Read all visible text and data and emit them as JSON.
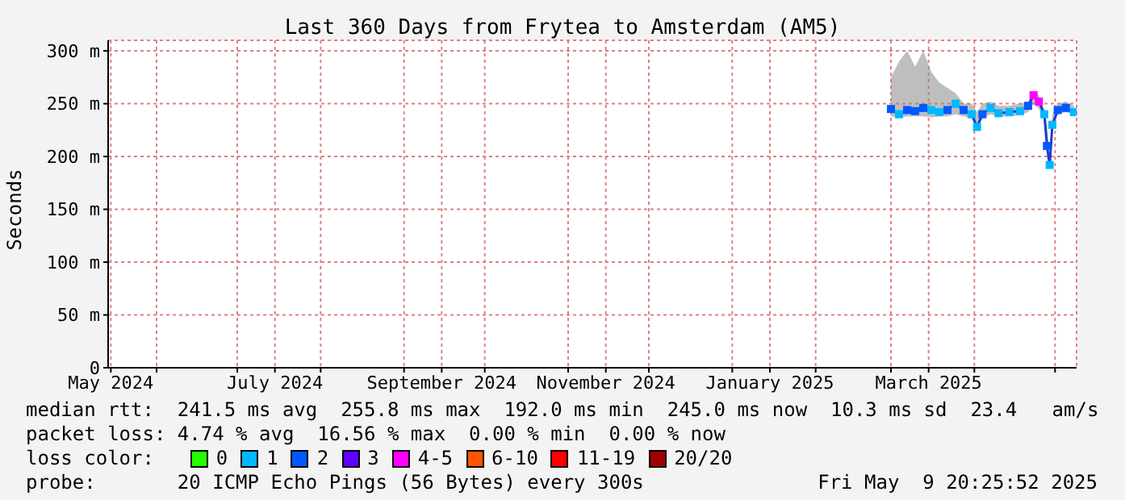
{
  "chart_data": {
    "type": "line",
    "title": "Last 360 Days from Frytea to Amsterdam (AM5)",
    "ylabel": "Seconds",
    "legend_title": "loss color:",
    "legend": "bottom",
    "grid": true,
    "line_style": "solid",
    "marker": "square",
    "xlim": [
      "2024-05-14",
      "2025-05-09"
    ],
    "xticks": [
      {
        "value": "2024-05-15",
        "label": "May 2024"
      },
      {
        "value": "2024-06-01",
        "label": null
      },
      {
        "value": "2024-07-01",
        "label": null
      },
      {
        "value": "2024-07-15",
        "label": "July 2024"
      },
      {
        "value": "2024-08-01",
        "label": null
      },
      {
        "value": "2024-09-01",
        "label": null
      },
      {
        "value": "2024-09-15",
        "label": "September 2024"
      },
      {
        "value": "2024-10-01",
        "label": null
      },
      {
        "value": "2024-11-01",
        "label": null
      },
      {
        "value": "2024-11-15",
        "label": "November 2024"
      },
      {
        "value": "2024-12-01",
        "label": null
      },
      {
        "value": "2025-01-01",
        "label": null
      },
      {
        "value": "2025-01-15",
        "label": "January 2025"
      },
      {
        "value": "2025-02-01",
        "label": null
      },
      {
        "value": "2025-03-01",
        "label": null
      },
      {
        "value": "2025-03-15",
        "label": "March 2025"
      },
      {
        "value": "2025-04-01",
        "label": null
      },
      {
        "value": "2025-05-01",
        "label": null
      }
    ],
    "ylim": [
      0,
      310
    ],
    "yticks": [
      0,
      {
        "value": 50,
        "label": "50 m"
      },
      {
        "value": 100,
        "label": "100 m"
      },
      {
        "value": 150,
        "label": "150 m"
      },
      {
        "value": 200,
        "label": "200 m"
      },
      {
        "value": 250,
        "label": "250 m"
      },
      {
        "value": 300,
        "label": "300 m"
      }
    ],
    "x": [
      "2025-03-01",
      "2025-03-04",
      "2025-03-07",
      "2025-03-10",
      "2025-03-13",
      "2025-03-16",
      "2025-03-19",
      "2025-03-22",
      "2025-03-25",
      "2025-03-28",
      "2025-03-31",
      "2025-04-02",
      "2025-04-04",
      "2025-04-07",
      "2025-04-10",
      "2025-04-14",
      "2025-04-18",
      "2025-04-21",
      "2025-04-23",
      "2025-04-25",
      "2025-04-27",
      "2025-04-28",
      "2025-04-29",
      "2025-04-30",
      "2025-05-02",
      "2025-05-05",
      "2025-05-08"
    ],
    "series": [
      {
        "color": "#1a3dcc",
        "marker": "none",
        "values": [
          245,
          240,
          244,
          243,
          246,
          244,
          242,
          244,
          250,
          244,
          240,
          228,
          240,
          246,
          241,
          242,
          243,
          248,
          258,
          252,
          240,
          210,
          192,
          230,
          244,
          246,
          242
        ],
        "lower": [
          238,
          237,
          238,
          238,
          238,
          237,
          238,
          238,
          240,
          238,
          236,
          226,
          236,
          240,
          238,
          238,
          239,
          242,
          250,
          245,
          235,
          205,
          188,
          225,
          240,
          242,
          240
        ],
        "upper": [
          275,
          290,
          300,
          285,
          300,
          280,
          270,
          265,
          260,
          250,
          250,
          242,
          250,
          252,
          248,
          248,
          250,
          252,
          262,
          258,
          245,
          230,
          200,
          240,
          250,
          252,
          248
        ]
      },
      {
        "type": "scatter",
        "name": "0",
        "color": "#26ff00",
        "values": [
          null,
          null,
          null,
          null,
          null,
          null,
          null,
          null,
          null,
          null,
          null,
          null,
          null,
          null,
          null,
          null,
          null,
          null,
          null,
          null,
          null,
          null,
          null,
          null,
          null,
          null,
          null
        ]
      },
      {
        "type": "scatter",
        "name": "1",
        "color": "#00b8ff",
        "values": [
          null,
          240,
          null,
          null,
          null,
          244,
          242,
          null,
          250,
          null,
          240,
          228,
          null,
          246,
          241,
          242,
          243,
          null,
          null,
          null,
          240,
          null,
          192,
          230,
          null,
          null,
          242
        ]
      },
      {
        "type": "scatter",
        "name": "2",
        "color": "#0059ff",
        "values": [
          245,
          null,
          244,
          243,
          246,
          null,
          null,
          244,
          null,
          244,
          null,
          null,
          240,
          null,
          null,
          null,
          null,
          248,
          null,
          null,
          null,
          210,
          null,
          null,
          244,
          246,
          null
        ]
      },
      {
        "type": "scatter",
        "name": "3",
        "color": "#5e00ff",
        "values": [
          null,
          null,
          null,
          null,
          null,
          null,
          null,
          null,
          null,
          null,
          null,
          null,
          null,
          null,
          null,
          null,
          null,
          null,
          null,
          null,
          null,
          null,
          null,
          null,
          null,
          null,
          null
        ]
      },
      {
        "type": "scatter",
        "name": "4-5",
        "color": "#ff00ff",
        "values": [
          null,
          null,
          null,
          null,
          null,
          null,
          null,
          null,
          null,
          null,
          null,
          null,
          null,
          null,
          null,
          null,
          null,
          null,
          258,
          252,
          null,
          null,
          null,
          null,
          null,
          null,
          null
        ]
      },
      {
        "type": "scatter",
        "name": "6-10",
        "color": "#ff5500",
        "values": [
          null,
          null,
          null,
          null,
          null,
          null,
          null,
          null,
          null,
          null,
          null,
          null,
          null,
          null,
          null,
          null,
          null,
          null,
          null,
          null,
          null,
          null,
          null,
          null,
          null,
          null,
          null
        ]
      },
      {
        "type": "scatter",
        "name": "11-19",
        "color": "#ff0000",
        "values": [
          null,
          null,
          null,
          null,
          null,
          null,
          null,
          null,
          null,
          null,
          null,
          null,
          null,
          null,
          null,
          null,
          null,
          null,
          null,
          null,
          null,
          null,
          null,
          null,
          null,
          null,
          null
        ]
      },
      {
        "type": "scatter",
        "name": "20/20",
        "color": "#a10000",
        "values": [
          null,
          null,
          null,
          null,
          null,
          null,
          null,
          null,
          null,
          null,
          null,
          null,
          null,
          null,
          null,
          null,
          null,
          null,
          null,
          null,
          null,
          null,
          null,
          null,
          null,
          null,
          null
        ]
      }
    ],
    "annotations": [
      "median rtt:  241.5 ms avg  255.8 ms max  192.0 ms min  245.0 ms now  10.3 ms sd  23.4   am/s",
      "packet loss: 4.74 % avg  16.56 % max  0.00 % min  0.00 % now",
      "probe:       20 ICMP Echo Pings (56 Bytes) every 300s",
      "Fri May  9 20:25:52 2025"
    ]
  }
}
